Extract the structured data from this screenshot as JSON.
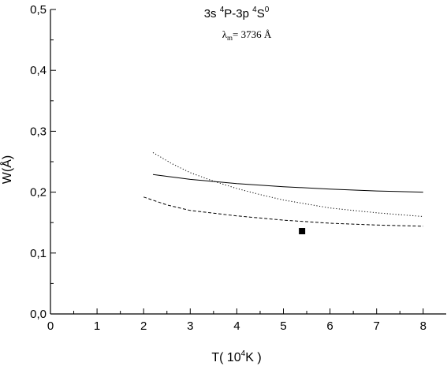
{
  "chart_data": {
    "type": "line",
    "title": {
      "prefix": "3s ",
      "sup1": "4",
      "mid": "P-3p ",
      "sup2": "4",
      "mid2": "S",
      "sup3": "0"
    },
    "annotation": {
      "lambda": "λ",
      "sub": "m",
      "rest": "= 3736 Å"
    },
    "xlabel": {
      "prefix": "T( 10",
      "sup": "4",
      "suffix": "K )"
    },
    "ylabel": "W(Å)",
    "xlim": [
      0,
      8.5
    ],
    "ylim": [
      0,
      0.5
    ],
    "x_ticks": [
      0,
      1,
      2,
      3,
      4,
      5,
      6,
      7,
      8
    ],
    "x_tick_labels": [
      "0",
      "1",
      "2",
      "3",
      "4",
      "5",
      "6",
      "7",
      "8"
    ],
    "y_ticks": [
      0,
      0.1,
      0.2,
      0.3,
      0.4,
      0.5
    ],
    "y_tick_labels": [
      "0,0",
      "0,1",
      "0,2",
      "0,3",
      "0,4",
      "0,5"
    ],
    "grid": false,
    "series": [
      {
        "style": "solid",
        "x": [
          2.2,
          3,
          4,
          5,
          6,
          7,
          8
        ],
        "y": [
          0.229,
          0.221,
          0.214,
          0.209,
          0.205,
          0.202,
          0.2
        ]
      },
      {
        "style": "dotted",
        "x": [
          2.2,
          2.6,
          3,
          3.5,
          4,
          4.5,
          5,
          6,
          7,
          8
        ],
        "y": [
          0.265,
          0.247,
          0.232,
          0.218,
          0.206,
          0.196,
          0.187,
          0.174,
          0.166,
          0.16
        ]
      },
      {
        "style": "dashed",
        "x": [
          2,
          2.5,
          3,
          4,
          5,
          6,
          7,
          8
        ],
        "y": [
          0.192,
          0.179,
          0.17,
          0.161,
          0.154,
          0.149,
          0.146,
          0.144
        ]
      }
    ],
    "points": [
      {
        "x": 5.4,
        "y": 0.136,
        "marker": "square"
      }
    ]
  }
}
